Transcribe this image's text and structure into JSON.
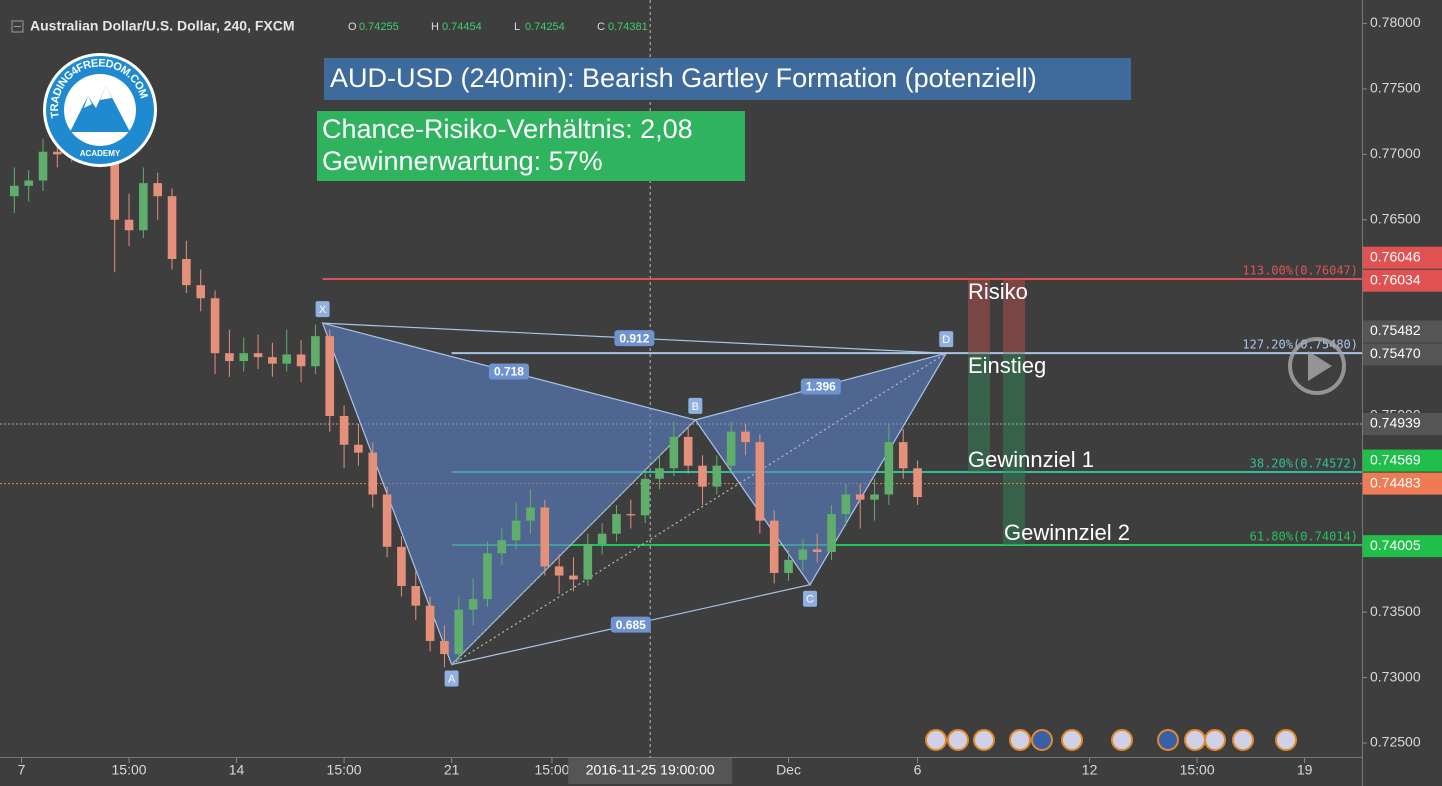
{
  "header": {
    "symbol": "Australian Dollar/U.S. Dollar, 240, FXCM",
    "ohlc": [
      {
        "key": "O",
        "value": "0.74255"
      },
      {
        "key": "H",
        "value": "0.74454"
      },
      {
        "key": "L",
        "value": "0.74254"
      },
      {
        "key": "C",
        "value": "0.74381"
      }
    ]
  },
  "logo": {
    "name": "TRADING4FREEDOM.COM",
    "sub": "ACADEMY"
  },
  "chart_data": {
    "type": "candlestick",
    "title": "AUD-USD (240min): Bearish Gartley Formation (potenziell)",
    "stats": [
      "Chance-Risiko-Verhältnis: 2,08",
      "Gewinnerwartung: 57%"
    ],
    "annotations": [
      "Risiko",
      "Einstieg",
      "Gewinnziel 1",
      "Gewinnziel 2"
    ],
    "up_color": "#5fae6c",
    "down_color": "#e5907a",
    "x": [
      2,
      4,
      6,
      8,
      10,
      12,
      14,
      16,
      18,
      20,
      22,
      24,
      26,
      28,
      30,
      32,
      34,
      36,
      38,
      40,
      42,
      44,
      46,
      48,
      50,
      52,
      54,
      56,
      58,
      60,
      62,
      64,
      66,
      68,
      70,
      72,
      74,
      76,
      78,
      80,
      82,
      84,
      86,
      88,
      90,
      92,
      94,
      96,
      98,
      100,
      102,
      104,
      106,
      108,
      110,
      112,
      114,
      116,
      118,
      120,
      122,
      124,
      126,
      128
    ],
    "open": [
      0.7668,
      0.7676,
      0.768,
      0.7702,
      0.77,
      0.7712,
      0.7709,
      0.7706,
      0.765,
      0.7642,
      0.7678,
      0.7668,
      0.762,
      0.76,
      0.759,
      0.7548,
      0.7542,
      0.7548,
      0.7545,
      0.754,
      0.7547,
      0.7538,
      0.7561,
      0.75,
      0.7478,
      0.7472,
      0.744,
      0.74,
      0.737,
      0.7355,
      0.7328,
      0.7318,
      0.7352,
      0.736,
      0.7395,
      0.7405,
      0.742,
      0.743,
      0.7385,
      0.7378,
      0.7375,
      0.7402,
      0.741,
      0.7425,
      0.7424,
      0.7452,
      0.746,
      0.7484,
      0.7462,
      0.7446,
      0.7462,
      0.7488,
      0.748,
      0.742,
      0.738,
      0.739,
      0.7398,
      0.7396,
      0.7425,
      0.744,
      0.7436,
      0.744,
      0.748,
      0.746
    ],
    "high": [
      0.769,
      0.7688,
      0.7712,
      0.7716,
      0.7722,
      0.7741,
      0.773,
      0.7712,
      0.767,
      0.769,
      0.7686,
      0.7674,
      0.7634,
      0.7612,
      0.7596,
      0.7566,
      0.756,
      0.7562,
      0.7556,
      0.7566,
      0.7558,
      0.757,
      0.7566,
      0.7508,
      0.7494,
      0.748,
      0.7446,
      0.7408,
      0.7382,
      0.7362,
      0.734,
      0.7362,
      0.7376,
      0.7404,
      0.7414,
      0.7434,
      0.7444,
      0.7436,
      0.7394,
      0.7392,
      0.741,
      0.7418,
      0.7432,
      0.7436,
      0.746,
      0.747,
      0.7496,
      0.7492,
      0.747,
      0.747,
      0.7496,
      0.7494,
      0.7486,
      0.7428,
      0.7398,
      0.7406,
      0.741,
      0.7432,
      0.7448,
      0.7448,
      0.7452,
      0.7494,
      0.749,
      0.7466
    ],
    "low": [
      0.7655,
      0.7664,
      0.7672,
      0.769,
      0.7694,
      0.77,
      0.769,
      0.761,
      0.763,
      0.7636,
      0.765,
      0.7612,
      0.7594,
      0.758,
      0.7532,
      0.753,
      0.7534,
      0.7536,
      0.753,
      0.7534,
      0.7526,
      0.7532,
      0.7488,
      0.746,
      0.7462,
      0.743,
      0.7392,
      0.7362,
      0.7344,
      0.732,
      0.7308,
      0.7312,
      0.734,
      0.7354,
      0.7386,
      0.7398,
      0.741,
      0.7378,
      0.7364,
      0.7366,
      0.737,
      0.7394,
      0.7404,
      0.7414,
      0.7418,
      0.7444,
      0.7454,
      0.7456,
      0.7432,
      0.744,
      0.7456,
      0.747,
      0.741,
      0.7372,
      0.7374,
      0.7382,
      0.7388,
      0.739,
      0.7416,
      0.7414,
      0.742,
      0.7432,
      0.7452,
      0.7432
    ],
    "close": [
      0.7676,
      0.768,
      0.7702,
      0.77,
      0.7712,
      0.7709,
      0.7706,
      0.765,
      0.7642,
      0.7678,
      0.7668,
      0.762,
      0.76,
      0.759,
      0.7548,
      0.7542,
      0.7548,
      0.7545,
      0.754,
      0.7547,
      0.7538,
      0.7561,
      0.75,
      0.7478,
      0.7472,
      0.744,
      0.74,
      0.737,
      0.7355,
      0.7328,
      0.7318,
      0.7352,
      0.736,
      0.7395,
      0.7405,
      0.742,
      0.743,
      0.7385,
      0.7378,
      0.7375,
      0.7402,
      0.741,
      0.7425,
      0.7424,
      0.7452,
      0.746,
      0.7484,
      0.7462,
      0.7446,
      0.7462,
      0.7488,
      0.748,
      0.742,
      0.738,
      0.739,
      0.7398,
      0.7396,
      0.7425,
      0.744,
      0.7436,
      0.744,
      0.748,
      0.746,
      0.7438
    ],
    "xlim": [
      0,
      190
    ],
    "xticks": [
      {
        "value": 3,
        "label": "7"
      },
      {
        "value": 18,
        "label": "15:00"
      },
      {
        "value": 33,
        "label": "14"
      },
      {
        "value": 48,
        "label": "15:00"
      },
      {
        "value": 63,
        "label": "21"
      },
      {
        "value": 77,
        "label": "15:00"
      },
      {
        "value": 110,
        "label": "Dec"
      },
      {
        "value": 128,
        "label": "6"
      },
      {
        "value": 152,
        "label": "12"
      },
      {
        "value": 167,
        "label": "15:00"
      },
      {
        "value": 182,
        "label": "19"
      }
    ],
    "ylim": [
      0.7237,
      0.7818
    ],
    "yticks": [
      {
        "value": 0.78,
        "label": "0.78000"
      },
      {
        "value": 0.775,
        "label": "0.77500"
      },
      {
        "value": 0.77,
        "label": "0.77000"
      },
      {
        "value": 0.765,
        "label": "0.76500"
      },
      {
        "value": 0.76,
        "label": "0.76000"
      },
      {
        "value": 0.755,
        "label": "0.75500"
      },
      {
        "value": 0.75,
        "label": "0.75000"
      },
      {
        "value": 0.745,
        "label": "0.74500"
      },
      {
        "value": 0.74,
        "label": "0.74000"
      },
      {
        "value": 0.735,
        "label": "0.73500"
      },
      {
        "value": 0.73,
        "label": "0.73000"
      },
      {
        "value": 0.725,
        "label": "0.72500"
      }
    ],
    "crosshair": {
      "value": 90.7,
      "label": "2016-11-25 19:00:00"
    },
    "pattern": {
      "color": "#5b83c8",
      "points": [
        {
          "label": "X",
          "x": 45,
          "y": 0.7571
        },
        {
          "label": "A",
          "x": 63,
          "y": 0.731
        },
        {
          "label": "B",
          "x": 97,
          "y": 0.7497
        },
        {
          "label": "C",
          "x": 113,
          "y": 0.7371
        },
        {
          "label": "D",
          "x": 132,
          "y": 0.7548
        }
      ],
      "ratios": [
        0.718,
        0.912,
        1.396,
        0.685
      ]
    },
    "levels": [
      {
        "value": 0.76047,
        "label": "113.00%(0.76047)",
        "color": "#e05252"
      },
      {
        "value": 0.7548,
        "label": "127.20%(0.75480)",
        "color": "#a9c4e8"
      },
      {
        "value": 0.74572,
        "label": "38.20%(0.74572)",
        "color": "#2fbf9a"
      },
      {
        "value": 0.74014,
        "label": "61.80%(0.74014)",
        "color": "#22c35a"
      }
    ],
    "price_labels": [
      {
        "value": 0.76046,
        "label": "0.76046",
        "color": "#e05252"
      },
      {
        "value": 0.76034,
        "label": "0.76034",
        "color": "#e05252"
      },
      {
        "value": 0.75482,
        "label": "0.75482",
        "color": "#555555"
      },
      {
        "value": 0.7547,
        "label": "0.75470",
        "color": "#555555"
      },
      {
        "value": 0.74939,
        "label": "0.74939",
        "color": "#555555",
        "dotted": true
      },
      {
        "value": 0.74569,
        "label": "0.74569",
        "color": "#1fbf4a"
      },
      {
        "value": 0.74483,
        "label": "0.74483",
        "color": "#ef7b55",
        "dotted": true
      },
      {
        "value": 0.74005,
        "label": "0.74005",
        "color": "#1fbf4a"
      }
    ]
  }
}
